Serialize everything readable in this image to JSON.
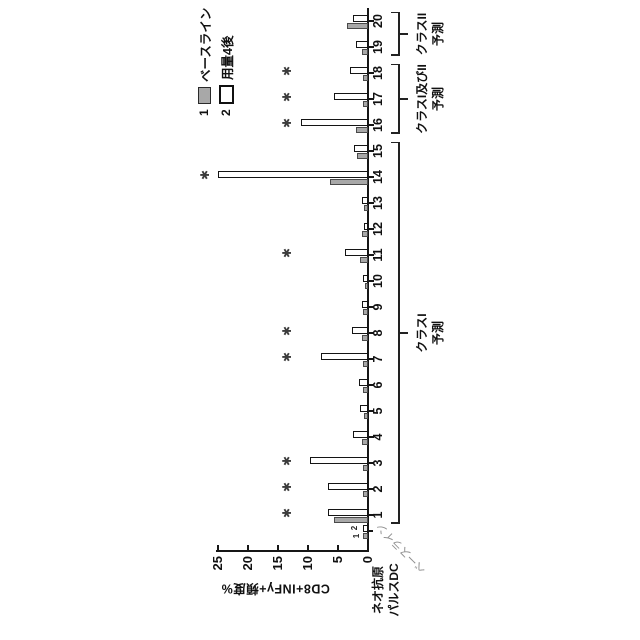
{
  "chart_data": {
    "type": "bar",
    "orientation": "figure rotated 90deg counterclockwise on page",
    "title": "",
    "ylabel": "CD8+INFγ+頻度%",
    "ylim": [
      0,
      25
    ],
    "yticks": [
      0,
      5,
      10,
      15,
      20,
      25
    ],
    "x_corner_label_lines": [
      "ネオ抗原",
      "パルスDC"
    ],
    "baseline_group": {
      "label": "ベースライン",
      "bar_number_labels": [
        "1",
        "2"
      ],
      "values": [
        0.6,
        0.7
      ]
    },
    "categories": [
      "1",
      "2",
      "3",
      "4",
      "5",
      "6",
      "7",
      "8",
      "9",
      "10",
      "11",
      "12",
      "13",
      "14",
      "15",
      "16",
      "17",
      "18",
      "19",
      "20"
    ],
    "series": [
      {
        "num": "1",
        "name": "ベースライン",
        "style": "gray-fill",
        "values": [
          5.5,
          0.6,
          0.6,
          0.8,
          0.5,
          0.7,
          0.7,
          0.8,
          0.7,
          0.4,
          1.2,
          0.8,
          0.5,
          6.2,
          1.7,
          1.8,
          0.7,
          0.7,
          0.8,
          3.3
        ]
      },
      {
        "num": "2",
        "name": "用量4後",
        "style": "white-fill-black-outline",
        "values": [
          6.5,
          6.5,
          9.5,
          2.4,
          1.2,
          1.4,
          7.7,
          2.5,
          0.8,
          0.6,
          3.7,
          0.5,
          0.8,
          24.8,
          2.2,
          11.0,
          5.5,
          2.8,
          1.9,
          2.3
        ]
      }
    ],
    "significance_stars": {
      "glyph": "✱",
      "categories": [
        1,
        2,
        3,
        7,
        8,
        11,
        14,
        16,
        17,
        18
      ],
      "y_value_default": 13.3,
      "y_value_cat14": 27
    },
    "brackets": [
      {
        "label_line1": "クラスI",
        "label_line2": "予測",
        "from_cat": 1,
        "to_cat": 15
      },
      {
        "label_line1": "クラスI及びII",
        "label_line2": "予測",
        "from_cat": 16,
        "to_cat": 18
      },
      {
        "label_line1": "クラスII",
        "label_line2": "予測",
        "from_cat": 19,
        "to_cat": 20
      }
    ],
    "legend_position": "top-right",
    "grid": false,
    "colors": {
      "ink": "#1a1a1a",
      "series1_fill": "#a8a8a8",
      "series2_fill": "#ffffff",
      "star": "#3c3c3c",
      "faint_label": "#8f8f8f"
    }
  }
}
